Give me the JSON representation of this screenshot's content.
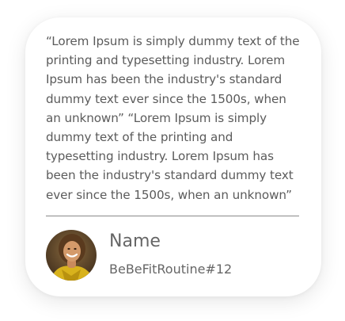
{
  "testimonial": {
    "quote": "“Lorem Ipsum is simply dummy text of the printing and typesetting industry. Lorem Ipsum has been the industry's standard dummy text ever since the 1500s, when an unknown” “Lorem Ipsum is simply dummy text of the printing and typesetting industry. Lorem Ipsum has been the industry's standard dummy text ever since the 1500s, when an unknown”",
    "author_name": "Name",
    "author_handle": "BeBeFitRoutine#12",
    "avatar_icon": "person-photo-avatar"
  }
}
